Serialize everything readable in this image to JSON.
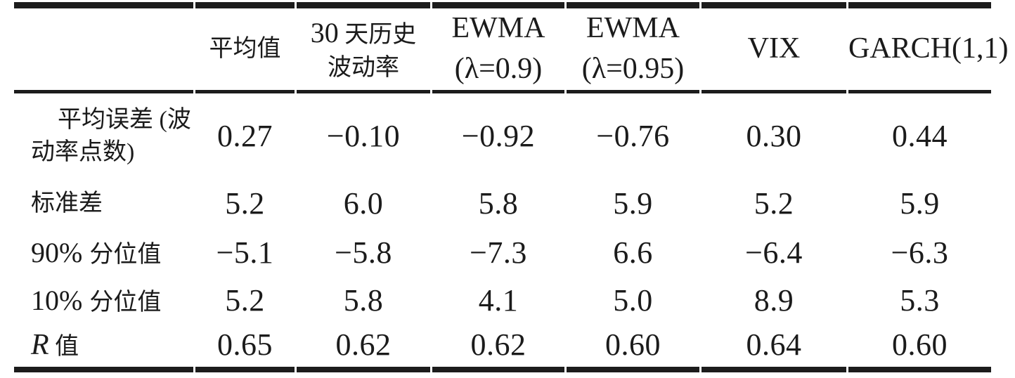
{
  "colors": {
    "text": "#1b1b1b",
    "rule": "#1c1c1c",
    "background": "#ffffff"
  },
  "table": {
    "header": [
      {
        "label": "平均值"
      },
      {
        "label_num": "30",
        "label_cjk": " 天历史",
        "label_line2": "波动率"
      },
      {
        "label": "EWMA",
        "label_line2": "(λ=0.9)"
      },
      {
        "label": "EWMA",
        "label_line2": "(λ=0.95)"
      },
      {
        "label": "VIX"
      },
      {
        "label": "GARCH(1,1)"
      }
    ],
    "rows": [
      {
        "label_line1": "平均误差 (波",
        "label_line2": "动率点数)",
        "values": [
          "0.27",
          "−0.10",
          "−0.92",
          "−0.76",
          "0.30",
          "0.44"
        ]
      },
      {
        "label": "标准差",
        "values": [
          "5.2",
          "6.0",
          "5.8",
          "5.9",
          "5.2",
          "5.9"
        ]
      },
      {
        "label_num": "90% ",
        "label": "分位值",
        "values": [
          "−5.1",
          "−5.8",
          "−7.3",
          "6.6",
          "−6.4",
          "−6.3"
        ]
      },
      {
        "label_num": "10% ",
        "label": "分位值",
        "values": [
          "5.2",
          "5.8",
          "4.1",
          "5.0",
          "8.9",
          "5.3"
        ]
      },
      {
        "label_r": "R",
        "label": " 值",
        "values": [
          "0.65",
          "0.62",
          "0.62",
          "0.60",
          "0.64",
          "0.60"
        ]
      }
    ]
  }
}
